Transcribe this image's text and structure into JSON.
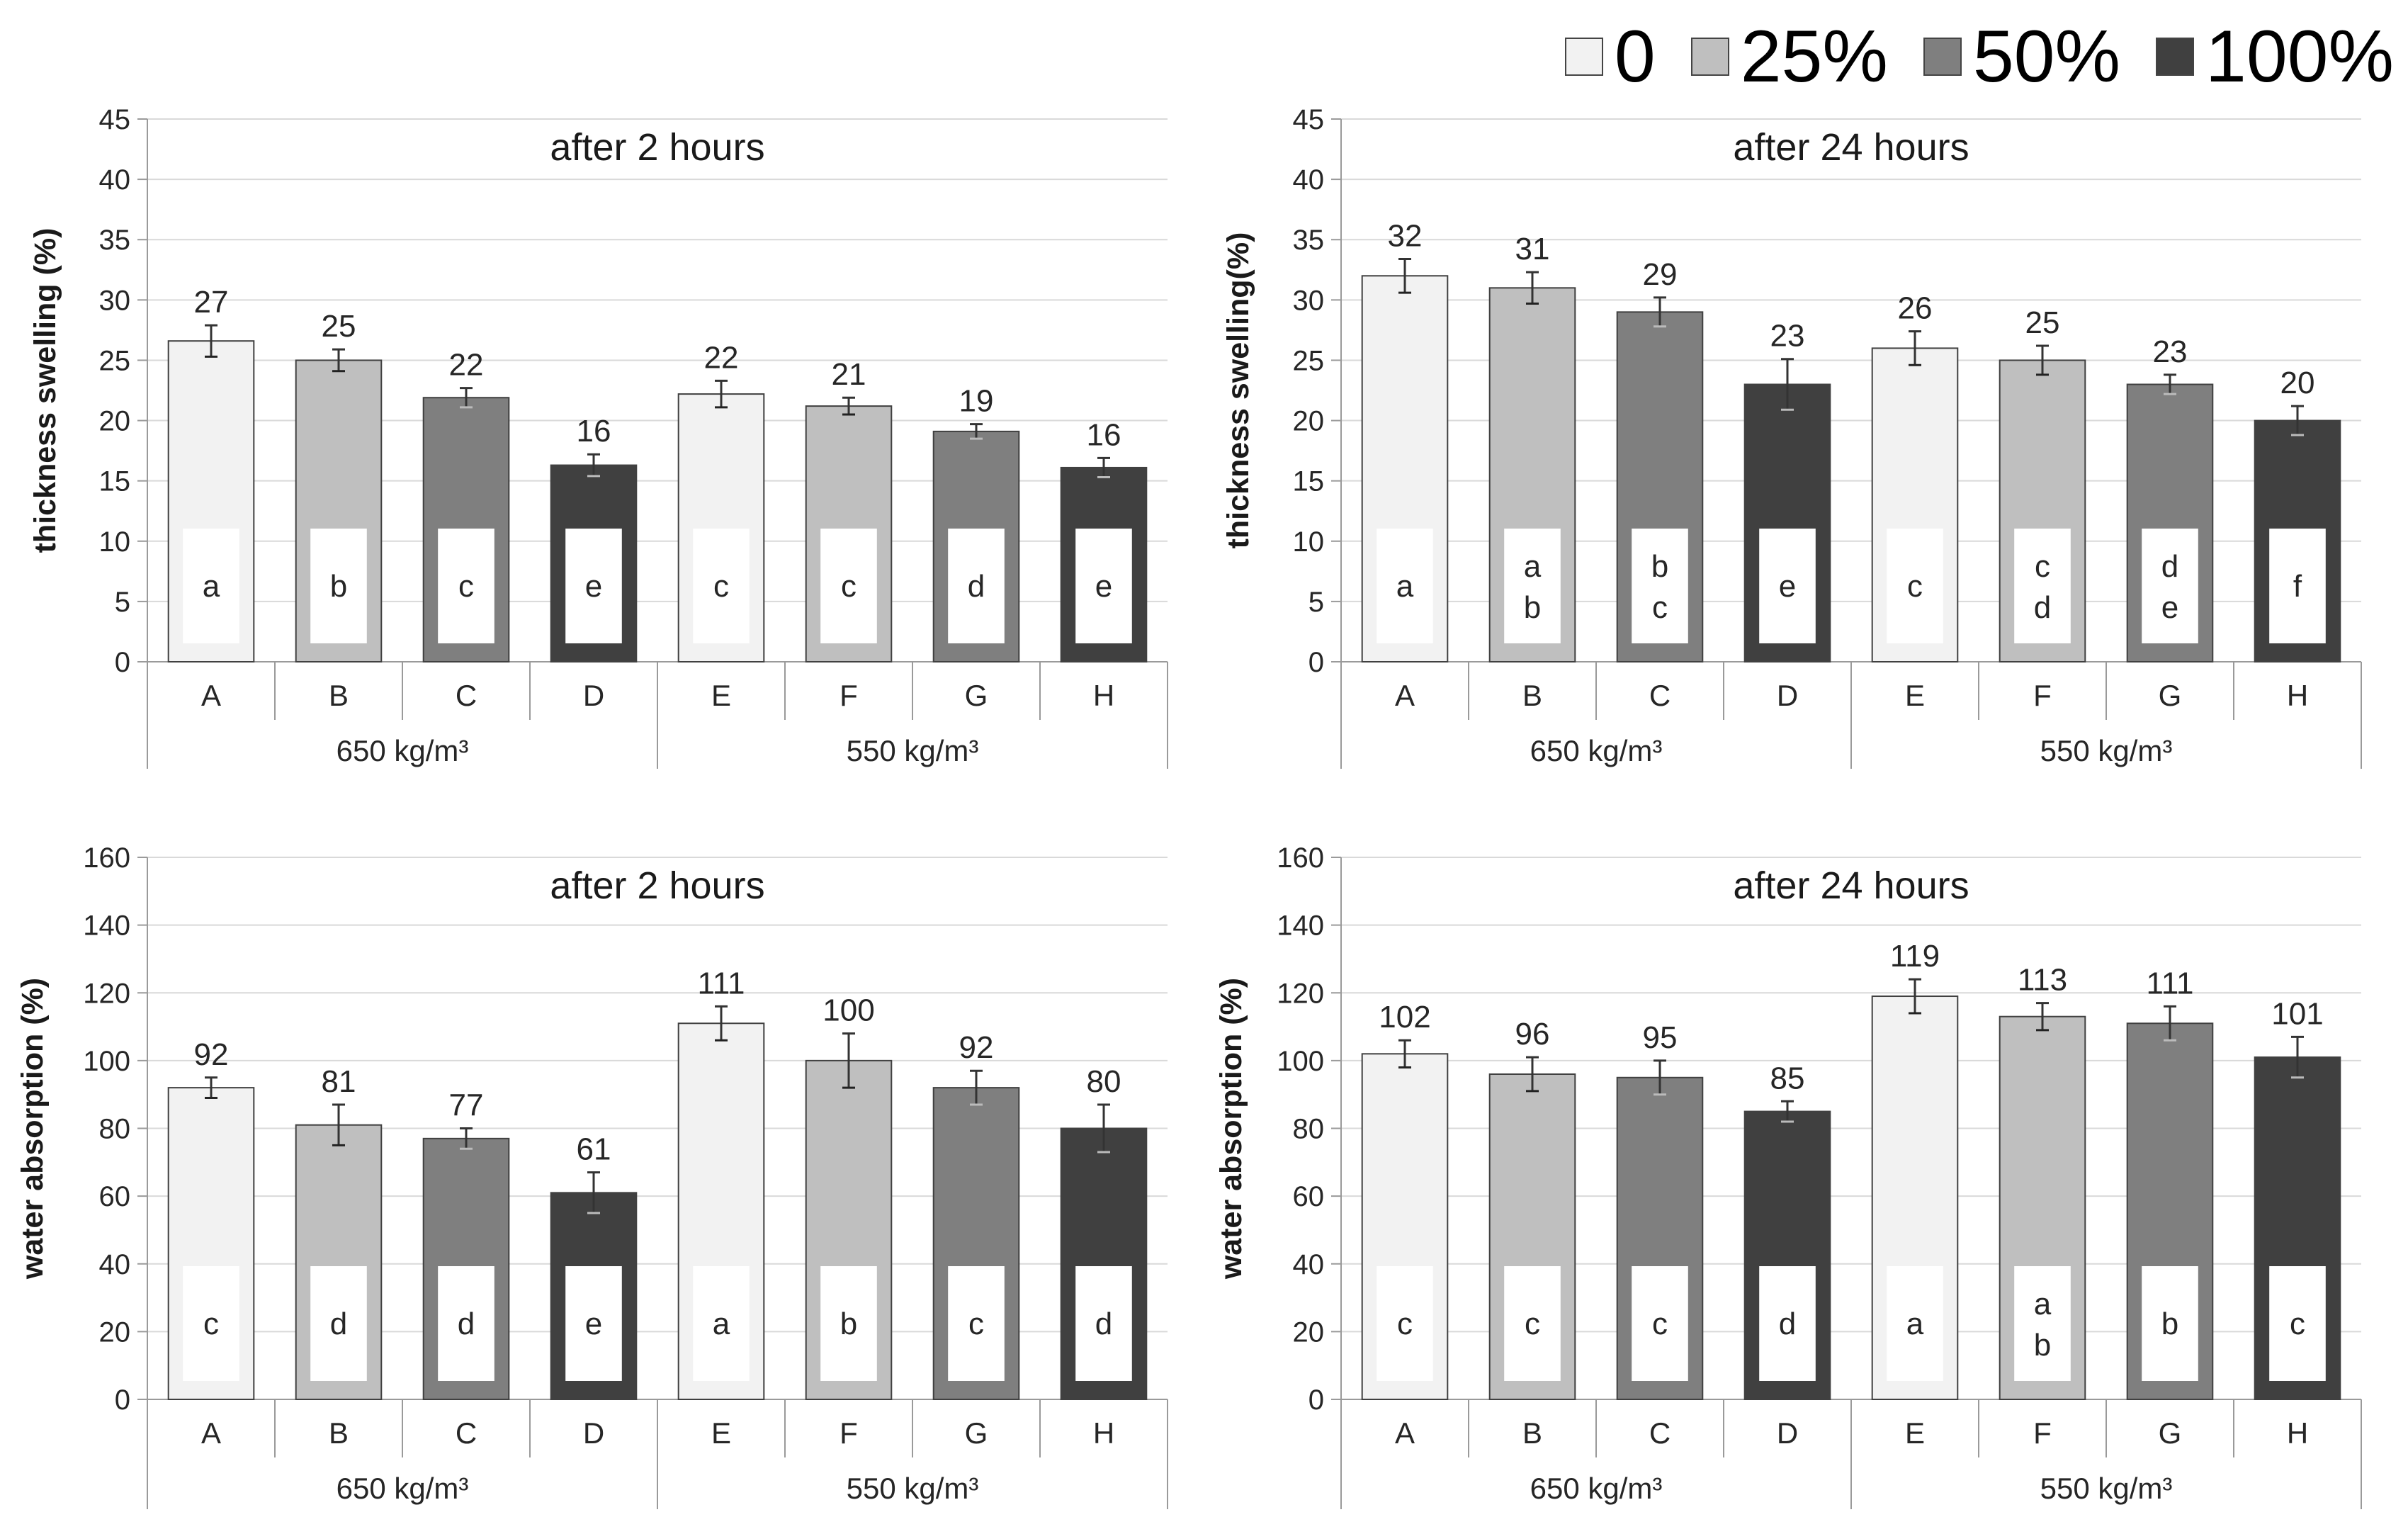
{
  "legend": {
    "entries": [
      {
        "label": "0",
        "color": "#f2f2f2"
      },
      {
        "label": "25%",
        "color": "#bfbfbf"
      },
      {
        "label": "50%",
        "color": "#7f7f7f"
      },
      {
        "label": "100%",
        "color": "#404040"
      }
    ]
  },
  "colors": {
    "grid": "#d9d9d9",
    "axis": "#9a9a9a",
    "bar_edge": "#404040",
    "text": "#262626"
  },
  "chart_data": [
    {
      "type": "bar",
      "title": "after 2 hours",
      "ylabel": "thickness swelling (%)",
      "ylim": [
        0,
        45
      ],
      "yticks": [
        "0",
        "5",
        "10",
        "15",
        "20",
        "25",
        "30",
        "35",
        "40",
        "45"
      ],
      "categories": [
        "A",
        "B",
        "C",
        "D",
        "E",
        "F",
        "G",
        "H"
      ],
      "groups": [
        "650 kg/m³",
        "550 kg/m³"
      ],
      "values": [
        26.6,
        25.0,
        21.9,
        16.3,
        22.2,
        21.2,
        19.1,
        16.1
      ],
      "value_labels": [
        "27",
        "25",
        "22",
        "16",
        "22",
        "21",
        "19",
        "16"
      ],
      "errors": [
        1.3,
        0.9,
        0.8,
        0.9,
        1.1,
        0.7,
        0.6,
        0.8
      ],
      "levels": [
        "0",
        "25%",
        "50%",
        "100%",
        "0",
        "25%",
        "50%",
        "100%"
      ],
      "letters": [
        [
          "a"
        ],
        [
          "b"
        ],
        [
          "c"
        ],
        [
          "e"
        ],
        [
          "c"
        ],
        [
          "c"
        ],
        [
          "d"
        ],
        [
          "e"
        ]
      ]
    },
    {
      "type": "bar",
      "title": "after 24 hours",
      "ylabel": "thickness swelling(%)",
      "ylim": [
        0,
        45
      ],
      "yticks": [
        "0",
        "5",
        "10",
        "15",
        "20",
        "25",
        "30",
        "35",
        "40",
        "45"
      ],
      "categories": [
        "A",
        "B",
        "C",
        "D",
        "E",
        "F",
        "G",
        "H"
      ],
      "groups": [
        "650 kg/m³",
        "550 kg/m³"
      ],
      "values": [
        32.0,
        31.0,
        29.0,
        23.0,
        26.0,
        25.0,
        23.0,
        20.0
      ],
      "value_labels": [
        "32",
        "31",
        "29",
        "23",
        "26",
        "25",
        "23",
        "20"
      ],
      "errors": [
        1.4,
        1.3,
        1.2,
        2.1,
        1.4,
        1.2,
        0.8,
        1.2
      ],
      "levels": [
        "0",
        "25%",
        "50%",
        "100%",
        "0",
        "25%",
        "50%",
        "100%"
      ],
      "letters": [
        [
          "a"
        ],
        [
          "a",
          "b"
        ],
        [
          "b",
          "c"
        ],
        [
          "e"
        ],
        [
          "c"
        ],
        [
          "c",
          "d"
        ],
        [
          "d",
          "e"
        ],
        [
          "f"
        ]
      ]
    },
    {
      "type": "bar",
      "title": "after 2 hours",
      "ylabel": "water absorption (%)",
      "ylim": [
        0,
        160
      ],
      "yticks": [
        "0",
        "20",
        "40",
        "60",
        "80",
        "100",
        "120",
        "140",
        "160"
      ],
      "categories": [
        "A",
        "B",
        "C",
        "D",
        "E",
        "F",
        "G",
        "H"
      ],
      "groups": [
        "650 kg/m³",
        "550 kg/m³"
      ],
      "values": [
        92,
        81,
        77,
        61,
        111,
        100,
        92,
        80
      ],
      "value_labels": [
        "92",
        "81",
        "77",
        "61",
        "111",
        "100",
        "92",
        "80"
      ],
      "errors": [
        3,
        6,
        3,
        6,
        5,
        8,
        5,
        7
      ],
      "levels": [
        "0",
        "25%",
        "50%",
        "100%",
        "0",
        "25%",
        "50%",
        "100%"
      ],
      "letters": [
        [
          "c"
        ],
        [
          "d"
        ],
        [
          "d"
        ],
        [
          "e"
        ],
        [
          "a"
        ],
        [
          "b"
        ],
        [
          "c"
        ],
        [
          "d"
        ]
      ]
    },
    {
      "type": "bar",
      "title": "after 24 hours",
      "ylabel": "water absorption (%)",
      "ylim": [
        0,
        160
      ],
      "yticks": [
        "0",
        "20",
        "40",
        "60",
        "80",
        "100",
        "120",
        "140",
        "160"
      ],
      "categories": [
        "A",
        "B",
        "C",
        "D",
        "E",
        "F",
        "G",
        "H"
      ],
      "groups": [
        "650 kg/m³",
        "550 kg/m³"
      ],
      "values": [
        102,
        96,
        95,
        85,
        119,
        113,
        111,
        101
      ],
      "value_labels": [
        "102",
        "96",
        "95",
        "85",
        "119",
        "113",
        "111",
        "101"
      ],
      "errors": [
        4,
        5,
        5,
        3,
        5,
        4,
        5,
        6
      ],
      "levels": [
        "0",
        "25%",
        "50%",
        "100%",
        "0",
        "25%",
        "50%",
        "100%"
      ],
      "letters": [
        [
          "c"
        ],
        [
          "c"
        ],
        [
          "c"
        ],
        [
          "d"
        ],
        [
          "a"
        ],
        [
          "a",
          "b"
        ],
        [
          "b"
        ],
        [
          "c"
        ]
      ]
    }
  ]
}
